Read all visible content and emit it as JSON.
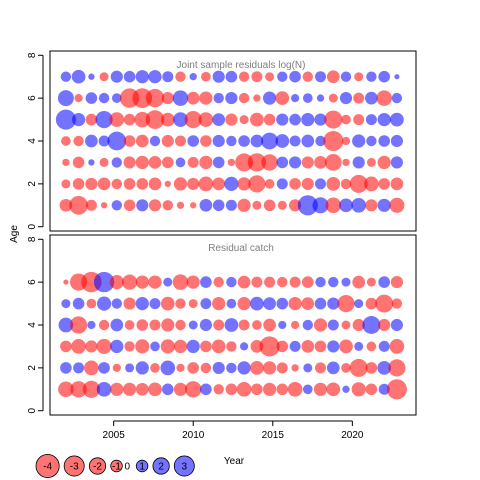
{
  "chart_data": {
    "type": "bubble",
    "xlabel": "Year",
    "ylabel": "Age",
    "xlim": [
      2001,
      2024
    ],
    "xticks": [
      2005,
      2010,
      2015,
      2020
    ],
    "legend_placement": "bottom-left",
    "colors": {
      "negative": "#ff0000",
      "positive": "#0000ff",
      "marker_alpha": 0.55
    },
    "legend": {
      "values": [
        -4,
        -3,
        -2,
        -1,
        0,
        1,
        2,
        3
      ],
      "labels": [
        "-4",
        "-3",
        "-2",
        "-1",
        "0",
        "1",
        "2",
        "3"
      ]
    },
    "panels": [
      {
        "title": "Joint sample residuals log(N)",
        "ylim": [
          -0.2,
          8.2
        ],
        "yticks": [
          0,
          2,
          4,
          6,
          8
        ],
        "ages": [
          1,
          2,
          3,
          4,
          5,
          6,
          7
        ],
        "first_year": 2002,
        "rows": [
          [
            -1.2,
            -2.6,
            -0.9,
            -0.3,
            0.8,
            -1.0,
            1.1,
            -1.1,
            -0.8,
            -0.4,
            -0.3,
            1.2,
            1.0,
            0.9,
            -1.3,
            -0.6,
            -1.0,
            -0.6,
            -1.1,
            3.0,
            1.9,
            -1.8,
            1.4,
            1.6,
            -1.1,
            1.3,
            -1.7
          ],
          [
            -0.6,
            -1.0,
            -1.1,
            -1.2,
            -0.8,
            -1.0,
            -1.0,
            -1.2,
            -0.3,
            -1.3,
            -1.1,
            -1.6,
            -1.2,
            1.5,
            -1.3,
            -2.2,
            -0.7,
            0.9,
            -1.0,
            -1.1,
            0.9,
            -1.4,
            -0.8,
            -2.4,
            -1.6,
            -1.0,
            -1.2
          ],
          [
            -0.4,
            -1.0,
            0.3,
            -0.6,
            0.8,
            -1.1,
            -1.3,
            -1.2,
            -1.0,
            0.7,
            -0.9,
            -1.3,
            1.0,
            -0.4,
            -2.4,
            -2.5,
            -2.0,
            1.0,
            1.1,
            -1.1,
            -1.2,
            -2.1,
            -0.4,
            1.1,
            -0.6,
            -1.3,
            1.1
          ],
          [
            -0.7,
            -0.8,
            1.2,
            0.9,
            2.6,
            -1.0,
            -1.2,
            0.8,
            -1.1,
            -0.9,
            1.0,
            -1.0,
            1.1,
            0.8,
            1.0,
            1.2,
            2.1,
            1.4,
            0.9,
            1.2,
            0.8,
            -3.0,
            -0.5,
            1.3,
            0.8,
            1.0,
            1.1
          ],
          [
            3.0,
            1.3,
            -1.0,
            2.2,
            -1.6,
            -1.0,
            -1.8,
            -2.6,
            -1.4,
            1.6,
            -2.2,
            -1.6,
            1.2,
            -1.1,
            -0.6,
            -1.4,
            -1.0,
            1.1,
            1.0,
            1.3,
            1.1,
            -2.4,
            -0.7,
            -0.9,
            0.9,
            1.3,
            1.4
          ],
          [
            1.9,
            -0.5,
            1.0,
            0.8,
            0.7,
            -2.8,
            -2.9,
            -2.5,
            -1.1,
            1.8,
            -1.2,
            -1.3,
            0.8,
            1.1,
            -0.8,
            -0.4,
            1.3,
            -1.4,
            0.5,
            0.7,
            0.4,
            -0.6,
            1.1,
            -0.9,
            1.2,
            -1.8,
            0.8
          ],
          [
            0.8,
            1.4,
            0.3,
            -0.6,
            1.1,
            1.0,
            1.3,
            1.3,
            0.9,
            -0.8,
            0.4,
            -0.7,
            1.1,
            1.0,
            -0.8,
            -0.9,
            -0.6,
            0.8,
            1.0,
            -0.8,
            0.9,
            -1.2,
            0.8,
            -0.6,
            0.8,
            1.0,
            0.2
          ]
        ]
      },
      {
        "title": "Residual catch",
        "ylim": [
          -0.2,
          8.2
        ],
        "yticks": [
          0,
          2,
          4,
          6,
          8
        ],
        "ages": [
          1,
          2,
          3,
          4,
          5,
          6
        ],
        "first_year": 2002,
        "rows": [
          [
            -1.8,
            -2.0,
            -2.2,
            1.6,
            -1.3,
            -1.3,
            -1.2,
            -1.4,
            1.0,
            -1.3,
            -2.0,
            1.0,
            -0.8,
            -1.0,
            -1.6,
            -1.0,
            -1.3,
            -1.0,
            -1.6,
            0.7,
            -1.3,
            -1.4,
            0.4,
            -1.5,
            -1.0,
            0.9,
            -3.0
          ],
          [
            1.0,
            0.9,
            -1.6,
            1.0,
            -0.5,
            0.6,
            1.3,
            -0.7,
            1.6,
            -0.5,
            -1.0,
            -0.8,
            1.1,
            0.8,
            1.3,
            -1.4,
            -1.3,
            -0.9,
            -0.4,
            0.6,
            -0.9,
            1.2,
            -0.7,
            -2.4,
            -1.0,
            1.4,
            -2.2
          ],
          [
            -1.0,
            -1.6,
            -1.1,
            -1.7,
            1.3,
            -0.8,
            -1.5,
            0.7,
            -1.5,
            -1.3,
            1.3,
            -1.0,
            -1.4,
            -0.8,
            0.5,
            -1.2,
            -3.0,
            -1.0,
            0.9,
            -1.2,
            -1.0,
            1.1,
            -1.4,
            0.6,
            -0.7,
            0.9,
            -1.6
          ],
          [
            1.6,
            -2.2,
            0.5,
            -0.8,
            1.2,
            -0.7,
            -1.0,
            -0.9,
            -1.3,
            -0.8,
            0.6,
            1.1,
            -0.9,
            1.4,
            -0.9,
            -0.7,
            -1.2,
            0.5,
            -0.5,
            0.8,
            -1.3,
            0.9,
            -0.6,
            -1.1,
            2.4,
            -1.1,
            1.1
          ],
          [
            0.6,
            1.0,
            -0.7,
            1.5,
            0.8,
            -1.1,
            1.3,
            0.9,
            -1.4,
            -0.8,
            -0.6,
            0.9,
            -1.3,
            0.7,
            -1.3,
            1.4,
            1.2,
            1.0,
            -1.3,
            -1.2,
            1.0,
            1.1,
            -2.2,
            0.6,
            -1.0,
            -2.4,
            -0.8
          ],
          [
            -0.2,
            -2.2,
            -3.1,
            3.1,
            -1.5,
            -1.7,
            -1.3,
            -1.3,
            0.6,
            -1.8,
            -1.3,
            1.0,
            -0.8,
            0.8,
            -1.2,
            -0.9,
            -0.9,
            -0.8,
            -0.9,
            -1.0,
            0.8,
            0.8,
            0.6,
            -1.2,
            -0.6,
            1.0,
            -1.1
          ]
        ]
      }
    ]
  }
}
